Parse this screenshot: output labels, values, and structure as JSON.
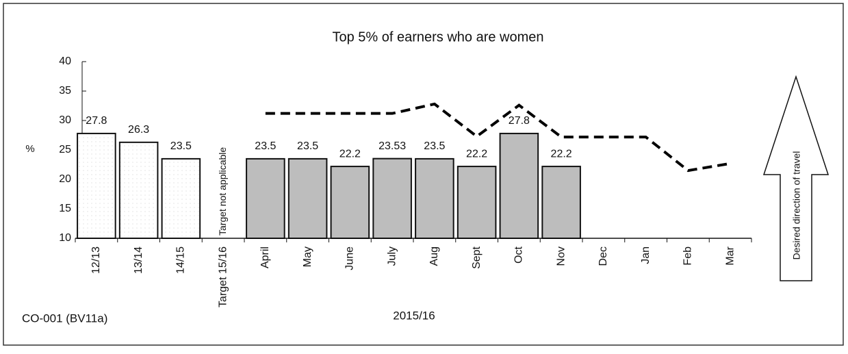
{
  "chart_data": {
    "type": "bar",
    "title": "Top 5% of earners who are women",
    "y_label": "%",
    "x_group_label": "2015/16",
    "note": "CO-001 (BV11a)",
    "annotation": "Target not applicable",
    "direction_label": "Desired direction of travel",
    "categories": [
      "12/13",
      "13/14",
      "14/15",
      "Target 15/16",
      "April",
      "May",
      "June",
      "July",
      "Aug",
      "Sept",
      "Oct",
      "Nov",
      "Dec",
      "Jan",
      "Feb",
      "Mar"
    ],
    "values": [
      27.8,
      26.3,
      23.5,
      null,
      23.5,
      23.5,
      22.2,
      23.53,
      23.5,
      22.2,
      27.8,
      22.2,
      null,
      null,
      null,
      null
    ],
    "bar_colors": [
      "#ffffff",
      "#ffffff",
      "#ffffff",
      "#ffffff",
      "#bdbdbd",
      "#bdbdbd",
      "#bdbdbd",
      "#bdbdbd",
      "#bdbdbd",
      "#bdbdbd",
      "#bdbdbd",
      "#bdbdbd",
      "#bdbdbd",
      "#bdbdbd",
      "#bdbdbd",
      "#bdbdbd"
    ],
    "target": {
      "values": [
        null,
        null,
        null,
        null,
        31.2,
        31.2,
        31.2,
        31.2,
        32.8,
        27.3,
        32.6,
        27.2,
        27.2,
        27.2,
        21.5,
        22.7
      ],
      "color": "#000000",
      "dashed": true
    },
    "ylim": [
      10,
      40
    ],
    "yticks": [
      10,
      15,
      20,
      25,
      30,
      35,
      40
    ]
  }
}
